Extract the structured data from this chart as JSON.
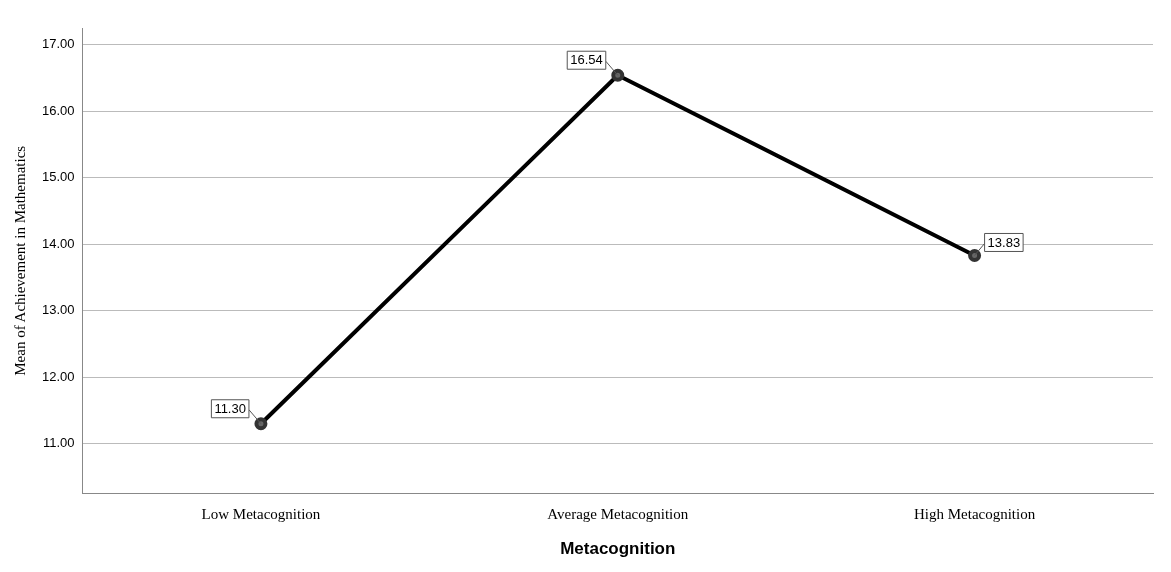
{
  "chart_data": {
    "type": "line",
    "xlabel": "Metacognition",
    "ylabel": "Mean of Achievement in Mathematics",
    "categories": [
      "Low Metacognition",
      "Average Metacognition",
      "High Metacognition"
    ],
    "series": [
      {
        "color": "#000000",
        "values": [
          11.3,
          16.54,
          13.83
        ],
        "value_labels": [
          "11.30",
          "16.54",
          "13.83"
        ]
      }
    ],
    "ylim": [
      10.25,
      17.25
    ],
    "yticks": [
      {
        "value": 11,
        "label": "11.00"
      },
      {
        "value": 12,
        "label": "12.00"
      },
      {
        "value": 13,
        "label": "13.00"
      },
      {
        "value": 14,
        "label": "14.00"
      },
      {
        "value": 15,
        "label": "15.00"
      },
      {
        "value": 16,
        "label": "16.00"
      },
      {
        "value": 17,
        "label": "17.00"
      }
    ],
    "grid": "y",
    "marker": "circle",
    "line_style": "solid"
  }
}
